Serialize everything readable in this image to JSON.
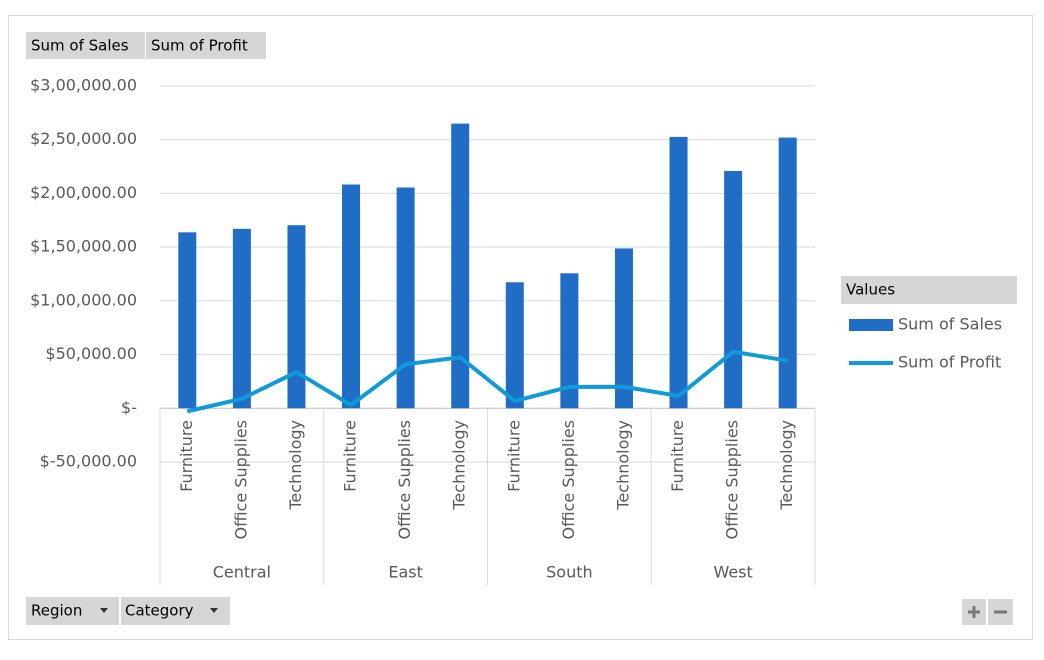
{
  "chart_data": {
    "type": "bar_line",
    "value_buttons": [
      "Sum of Sales",
      "Sum of Profit"
    ],
    "axis_buttons": [
      "Region",
      "Category"
    ],
    "legend_title": "Values",
    "groups": [
      "Central",
      "East",
      "South",
      "West"
    ],
    "categories": [
      "Furniture",
      "Office Supplies",
      "Technology",
      "Furniture",
      "Office Supplies",
      "Technology",
      "Furniture",
      "Office Supplies",
      "Technology",
      "Furniture",
      "Office Supplies",
      "Technology"
    ],
    "series": [
      {
        "name": "Sum of Sales",
        "type": "bar",
        "color": "#1f6dc4",
        "values": [
          163797,
          167026,
          170416,
          208291,
          205516,
          264974,
          117299,
          125651,
          148772,
          252613,
          220853,
          251992
        ]
      },
      {
        "name": "Sum of Profit",
        "type": "line",
        "color": "#0f9ad9",
        "values": [
          -2871,
          8880,
          33697,
          3046,
          41015,
          47462,
          6772,
          19987,
          19992,
          11505,
          52610,
          44304
        ]
      }
    ],
    "ylim": [
      -50000,
      300000
    ],
    "yticks": [
      {
        "value": -50000,
        "label": "$-50,000.00"
      },
      {
        "value": 0,
        "label": "$-"
      },
      {
        "value": 50000,
        "label": "$50,000.00"
      },
      {
        "value": 100000,
        "label": "$1,00,000.00"
      },
      {
        "value": 150000,
        "label": "$1,50,000.00"
      },
      {
        "value": 200000,
        "label": "$2,00,000.00"
      },
      {
        "value": 250000,
        "label": "$2,50,000.00"
      },
      {
        "value": 300000,
        "label": "$3,00,000.00"
      }
    ],
    "grid": true
  }
}
